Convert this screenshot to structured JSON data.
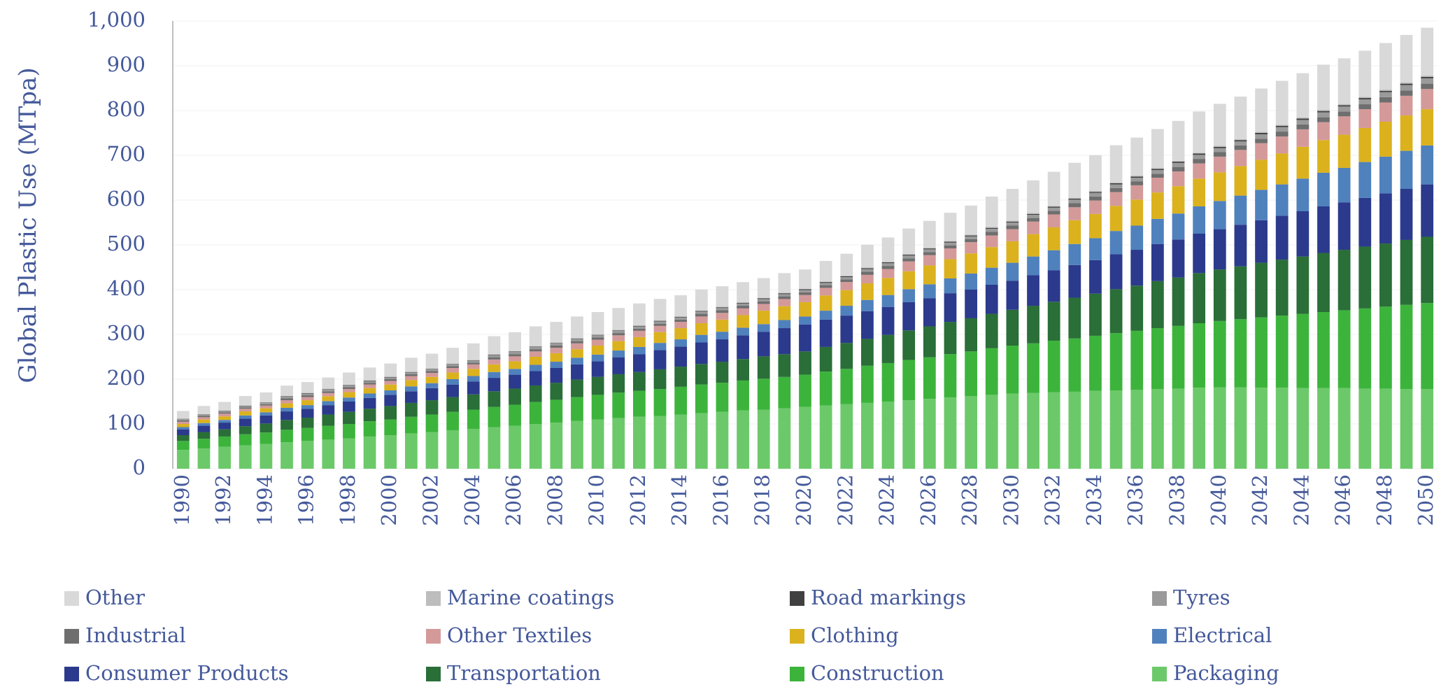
{
  "chart_data": {
    "type": "stacked_bar",
    "y_label": "Global Plastic Use (MTpa)",
    "categories": [
      "1990",
      null,
      "1992",
      null,
      "1994",
      null,
      "1996",
      null,
      "1998",
      null,
      "2000",
      null,
      "2002",
      null,
      "2004",
      null,
      "2006",
      null,
      "2008",
      null,
      "2010",
      null,
      "2012",
      null,
      "2014",
      null,
      "2016",
      null,
      "2018",
      null,
      "2020",
      null,
      "2022",
      null,
      "2024",
      null,
      "2026",
      null,
      "2028",
      null,
      "2030",
      null,
      "2032",
      null,
      "2034",
      null,
      "2036",
      null,
      "2038",
      null,
      "2040",
      null,
      "2042",
      null,
      "2044",
      null,
      "2046",
      null,
      "2048",
      null,
      "2050"
    ],
    "ylim": [
      0,
      1000
    ],
    "yticks": [
      0,
      100,
      200,
      300,
      400,
      500,
      600,
      700,
      800,
      900,
      {
        "value": 1000,
        "label": "1,000"
      }
    ],
    "grid": true,
    "legend": "bottom",
    "series": [
      {
        "name": "Packaging",
        "color": "#6cc96a",
        "values": [
          42,
          45,
          49,
          52,
          55,
          59,
          62,
          65,
          68,
          72,
          75,
          79,
          82,
          86,
          89,
          93,
          96,
          100,
          103,
          107,
          110,
          113,
          116,
          118,
          121,
          124,
          127,
          130,
          132,
          135,
          138,
          141,
          144,
          147,
          150,
          153,
          156,
          159,
          162,
          165,
          168,
          169,
          171,
          172,
          174,
          175,
          176,
          178,
          179,
          181,
          182,
          182,
          181,
          181,
          180,
          180,
          180,
          179,
          179,
          178,
          178
        ]
      },
      {
        "name": "Construction",
        "color": "#3cb43c",
        "values": [
          20,
          22,
          23,
          25,
          26,
          28,
          29,
          31,
          32,
          34,
          35,
          37,
          39,
          41,
          43,
          45,
          47,
          49,
          51,
          53,
          55,
          57,
          58,
          60,
          62,
          64,
          65,
          67,
          69,
          70,
          72,
          76,
          79,
          83,
          86,
          90,
          93,
          97,
          100,
          104,
          107,
          111,
          115,
          119,
          123,
          128,
          132,
          136,
          140,
          144,
          148,
          152,
          157,
          161,
          166,
          170,
          174,
          179,
          183,
          188,
          192
        ]
      },
      {
        "name": "Transportation",
        "color": "#2a6e38",
        "values": [
          13,
          15,
          16,
          18,
          20,
          22,
          23,
          25,
          27,
          28,
          30,
          31,
          32,
          33,
          34,
          35,
          36,
          37,
          38,
          39,
          40,
          41,
          42,
          44,
          45,
          46,
          47,
          48,
          50,
          51,
          52,
          55,
          58,
          60,
          63,
          66,
          69,
          72,
          74,
          77,
          80,
          84,
          87,
          91,
          94,
          98,
          101,
          105,
          108,
          112,
          115,
          118,
          122,
          125,
          128,
          132,
          135,
          138,
          141,
          145,
          148
        ]
      },
      {
        "name": "Consumer Products",
        "color": "#2b3a8c",
        "values": [
          13,
          14,
          15,
          17,
          18,
          19,
          20,
          21,
          23,
          24,
          25,
          26,
          27,
          28,
          29,
          30,
          31,
          32,
          33,
          34,
          35,
          38,
          40,
          43,
          45,
          48,
          50,
          53,
          55,
          58,
          60,
          61,
          61,
          62,
          62,
          63,
          63,
          64,
          64,
          65,
          65,
          68,
          70,
          73,
          75,
          78,
          80,
          83,
          85,
          88,
          90,
          93,
          95,
          98,
          101,
          104,
          106,
          109,
          112,
          114,
          117
        ]
      },
      {
        "name": "Electrical",
        "color": "#4f81bd",
        "values": [
          5,
          6,
          6,
          7,
          7,
          8,
          8,
          9,
          9,
          10,
          10,
          11,
          11,
          12,
          12,
          13,
          13,
          14,
          14,
          15,
          15,
          15,
          16,
          16,
          16,
          17,
          17,
          17,
          17,
          18,
          18,
          20,
          22,
          25,
          27,
          29,
          31,
          33,
          36,
          38,
          40,
          42,
          45,
          47,
          49,
          52,
          54,
          56,
          58,
          61,
          63,
          65,
          68,
          70,
          73,
          75,
          77,
          80,
          82,
          85,
          87
        ]
      },
      {
        "name": "Clothing",
        "color": "#dbb21e",
        "values": [
          7,
          8,
          8,
          9,
          9,
          10,
          11,
          11,
          12,
          12,
          13,
          14,
          14,
          15,
          16,
          17,
          17,
          18,
          19,
          19,
          20,
          21,
          22,
          24,
          25,
          26,
          27,
          28,
          30,
          31,
          32,
          34,
          35,
          37,
          38,
          40,
          42,
          43,
          45,
          46,
          48,
          50,
          51,
          53,
          54,
          56,
          58,
          59,
          61,
          62,
          64,
          66,
          67,
          69,
          71,
          73,
          74,
          76,
          78,
          79,
          81
        ]
      },
      {
        "name": "Other Textiles",
        "color": "#d49a9a",
        "values": [
          5,
          5,
          6,
          6,
          6,
          7,
          7,
          7,
          7,
          8,
          8,
          9,
          9,
          10,
          10,
          11,
          11,
          12,
          12,
          13,
          13,
          13,
          14,
          14,
          14,
          15,
          15,
          15,
          15,
          16,
          16,
          17,
          18,
          19,
          20,
          22,
          23,
          24,
          25,
          26,
          27,
          28,
          29,
          29,
          30,
          31,
          32,
          33,
          33,
          34,
          35,
          36,
          37,
          38,
          39,
          40,
          41,
          42,
          43,
          44,
          45
        ]
      },
      {
        "name": "Industrial",
        "color": "#6e6e6e",
        "values": [
          3,
          3,
          3,
          3,
          3,
          4,
          4,
          4,
          4,
          4,
          4,
          4,
          4,
          4,
          4,
          5,
          5,
          5,
          5,
          5,
          5,
          5,
          5,
          5,
          5,
          6,
          6,
          6,
          6,
          6,
          6,
          6,
          6,
          7,
          7,
          7,
          7,
          7,
          7,
          8,
          8,
          8,
          8,
          9,
          9,
          9,
          9,
          9,
          10,
          10,
          10,
          10,
          10,
          11,
          11,
          11,
          11,
          11,
          12,
          12,
          12
        ]
      },
      {
        "name": "Tyres",
        "color": "#9a9a9a",
        "values": [
          3,
          3,
          3,
          3,
          3,
          4,
          4,
          4,
          4,
          4,
          4,
          4,
          4,
          4,
          4,
          5,
          5,
          5,
          5,
          5,
          5,
          5,
          5,
          5,
          5,
          5,
          5,
          5,
          5,
          5,
          5,
          5,
          5,
          6,
          6,
          6,
          6,
          6,
          6,
          7,
          7,
          7,
          7,
          8,
          8,
          8,
          8,
          8,
          9,
          9,
          9,
          9,
          10,
          10,
          10,
          11,
          11,
          11,
          11,
          12,
          12
        ]
      },
      {
        "name": "Road markings",
        "color": "#404040",
        "values": [
          0.5,
          0.6,
          0.6,
          0.7,
          0.7,
          0.8,
          0.8,
          0.9,
          0.9,
          1,
          1,
          1,
          1,
          1,
          1,
          1,
          1,
          1,
          1,
          1,
          1,
          1.1,
          1.2,
          1.3,
          1.4,
          1.5,
          1.6,
          1.7,
          1.8,
          1.9,
          2,
          2,
          2,
          2,
          2,
          2,
          2,
          2,
          2,
          2,
          2,
          2.1,
          2.2,
          2.3,
          2.4,
          2.5,
          2.6,
          2.7,
          2.8,
          2.9,
          3,
          3,
          3,
          3,
          3,
          3,
          3,
          3,
          3,
          3,
          3
        ]
      },
      {
        "name": "Marine coatings",
        "color": "#bdbdbd",
        "values": [
          0.5,
          0.6,
          0.6,
          0.7,
          0.7,
          0.8,
          0.8,
          0.9,
          0.9,
          1,
          1,
          1,
          1,
          1,
          1,
          1,
          1,
          1,
          1,
          1,
          1,
          1,
          1,
          1,
          1,
          1,
          1,
          1,
          1,
          1,
          1,
          1.1,
          1.2,
          1.3,
          1.4,
          1.5,
          1.6,
          1.7,
          1.8,
          1.9,
          2,
          2,
          2,
          2,
          2,
          2,
          2,
          2,
          2,
          2,
          2,
          2.1,
          2.2,
          2.3,
          2.4,
          2.5,
          2.6,
          2.7,
          2.8,
          2.9,
          3
        ]
      },
      {
        "name": "Other",
        "color": "#d9d9d9",
        "values": [
          17,
          18,
          19,
          21,
          22,
          23,
          24,
          25,
          27,
          28,
          29,
          31,
          33,
          35,
          37,
          40,
          42,
          44,
          46,
          48,
          50,
          49,
          49,
          48,
          47,
          47,
          46,
          45,
          44,
          44,
          43,
          46,
          49,
          51,
          54,
          57,
          60,
          63,
          65,
          68,
          71,
          73,
          76,
          78,
          80,
          83,
          85,
          87,
          89,
          92,
          94,
          95,
          97,
          98,
          99,
          101,
          102,
          103,
          104,
          106,
          107
        ]
      }
    ]
  }
}
